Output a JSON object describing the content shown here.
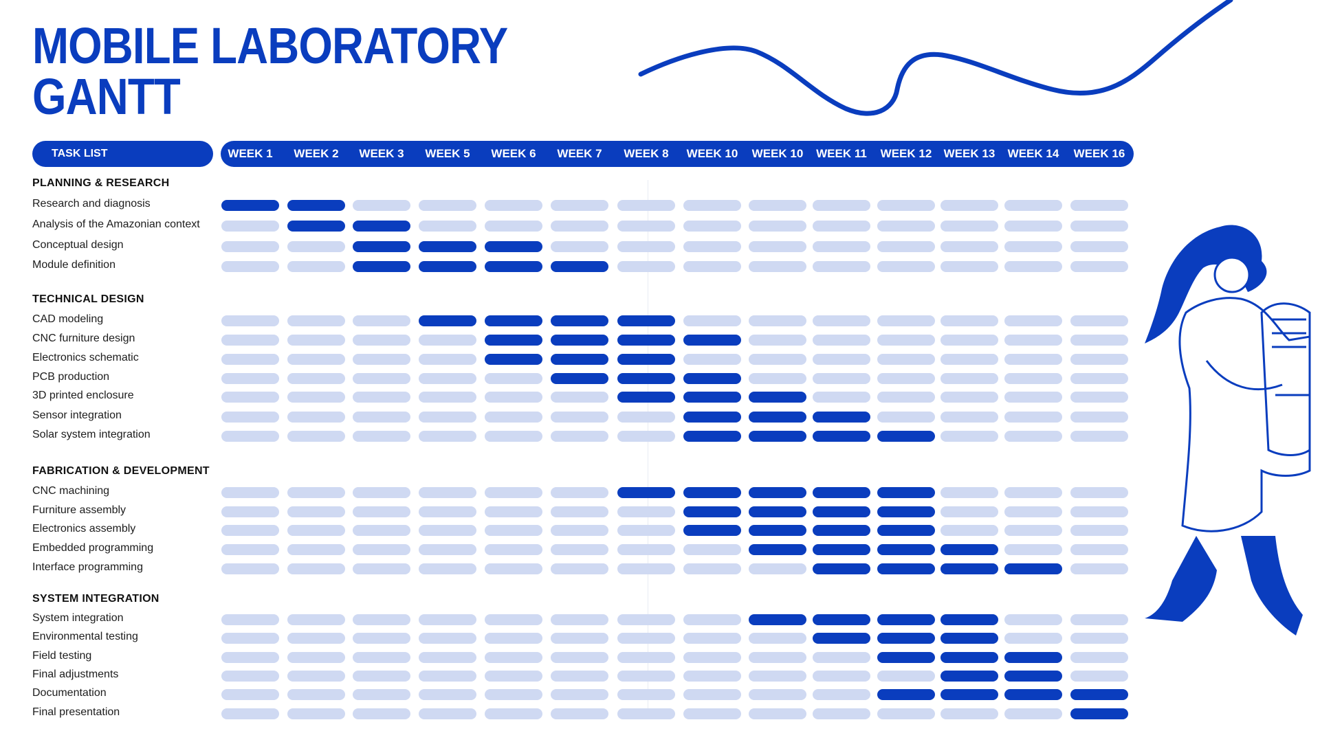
{
  "title": {
    "line1": "MOBILE LABORATORY",
    "line2": "GANTT"
  },
  "header": {
    "task_list_label": "TASK LIST"
  },
  "colors": {
    "accent": "#0a3dbe",
    "inactive": "#cfd9f2"
  },
  "chart_data": {
    "type": "gantt",
    "weeks": [
      "WEEK 1",
      "WEEK 2",
      "WEEK 3",
      "WEEK 5",
      "WEEK 6",
      "WEEK 7",
      "WEEK 8",
      "WEEK 10",
      "WEEK 10",
      "WEEK 11",
      "WEEK 12",
      "WEEK 13",
      "WEEK 14",
      "WEEK 16"
    ],
    "sections": [
      {
        "name": "PLANNING & RESEARCH",
        "tasks": [
          {
            "name": "Research and diagnosis",
            "active": [
              1,
              2
            ]
          },
          {
            "name": "Analysis of the Amazonian context",
            "active": [
              2,
              3
            ]
          },
          {
            "name": "Conceptual design",
            "active": [
              3,
              4,
              5
            ]
          },
          {
            "name": "Module definition",
            "active": [
              3,
              4,
              5,
              6
            ]
          }
        ]
      },
      {
        "name": "TECHNICAL DESIGN",
        "tasks": [
          {
            "name": "CAD modeling",
            "active": [
              4,
              5,
              6,
              7
            ]
          },
          {
            "name": "CNC furniture design",
            "active": [
              5,
              6,
              7,
              8
            ]
          },
          {
            "name": "Electronics schematic",
            "active": [
              5,
              6,
              7
            ]
          },
          {
            "name": "PCB production",
            "active": [
              6,
              7,
              8
            ]
          },
          {
            "name": "3D printed enclosure",
            "active": [
              7,
              8,
              9
            ]
          },
          {
            "name": "Sensor integration",
            "active": [
              8,
              9,
              10
            ]
          },
          {
            "name": "Solar system integration",
            "active": [
              8,
              9,
              10,
              11
            ]
          }
        ]
      },
      {
        "name": "FABRICATION & DEVELOPMENT",
        "tasks": [
          {
            "name": "CNC machining",
            "active": [
              7,
              8,
              9,
              10,
              11
            ]
          },
          {
            "name": "Furniture assembly",
            "active": [
              8,
              9,
              10,
              11
            ]
          },
          {
            "name": "Electronics assembly",
            "active": [
              8,
              9,
              10,
              11
            ]
          },
          {
            "name": "Embedded programming",
            "active": [
              9,
              10,
              11,
              12
            ]
          },
          {
            "name": "Interface programming",
            "active": [
              10,
              11,
              12,
              13
            ]
          }
        ]
      },
      {
        "name": "SYSTEM INTEGRATION",
        "tasks": [
          {
            "name": "System integration",
            "active": [
              9,
              10,
              11,
              12
            ]
          },
          {
            "name": "Environmental testing",
            "active": [
              10,
              11,
              12
            ]
          },
          {
            "name": "Field testing",
            "active": [
              11,
              12,
              13
            ]
          },
          {
            "name": "Final adjustments",
            "active": [
              12,
              13
            ]
          },
          {
            "name": "Documentation",
            "active": [
              11,
              12,
              13,
              14
            ]
          },
          {
            "name": "Final presentation",
            "active": [
              14
            ]
          }
        ]
      }
    ]
  }
}
